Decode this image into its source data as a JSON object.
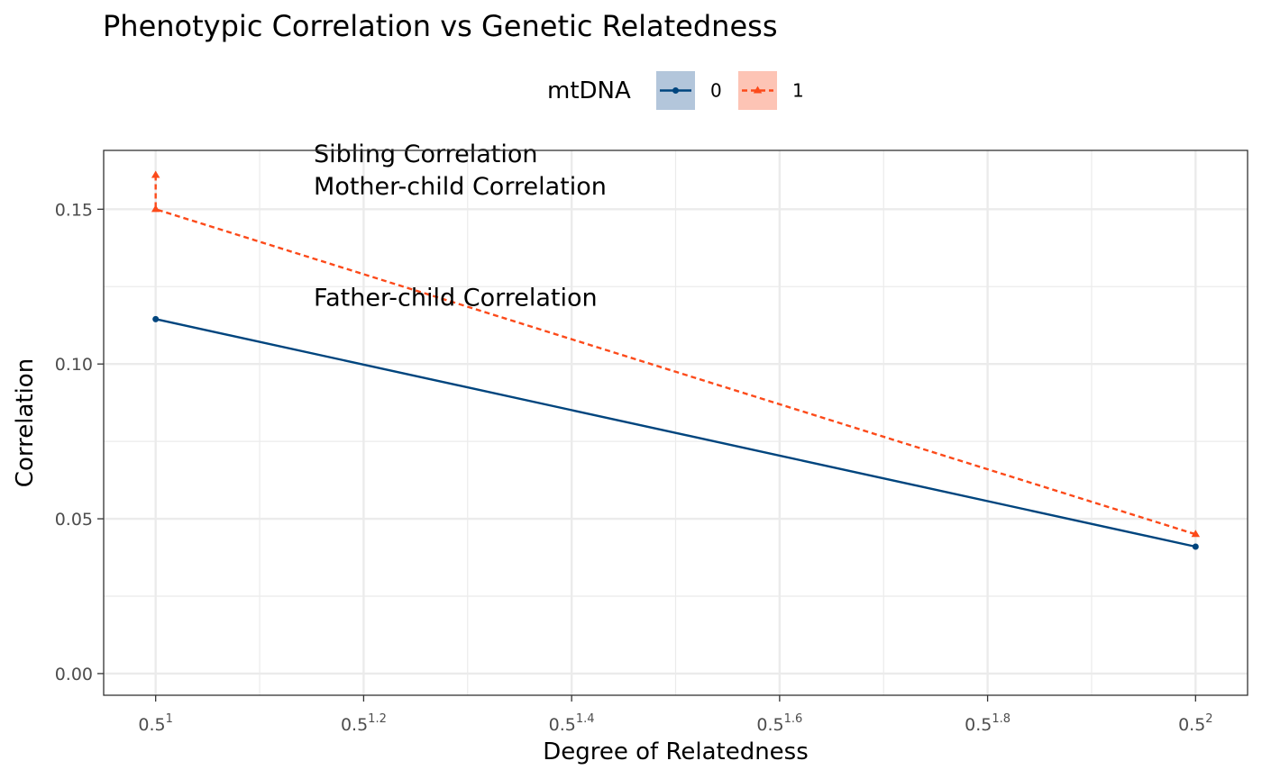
{
  "chart_data": {
    "type": "line",
    "title": "Phenotypic Correlation vs Genetic Relatedness",
    "xlabel": "Degree of Relatedness",
    "ylabel": "Correlation",
    "x_scale": "log",
    "x_tick_base": "0.5",
    "x_tick_exponents": [
      "1",
      "1.2",
      "1.4",
      "1.6",
      "1.8",
      "2"
    ],
    "x_exponent_range": [
      0.95,
      2.05
    ],
    "y_ticks": [
      "0.00",
      "0.05",
      "0.10",
      "0.15"
    ],
    "ylim": [
      -0.007,
      0.169
    ],
    "grid": true,
    "legend": {
      "title": "mtDNA",
      "position": "top",
      "entries": [
        {
          "label": "0",
          "color": "#00457e",
          "fill": "#b3c6db",
          "line": "solid",
          "marker": "circle"
        },
        {
          "label": "1",
          "color": "#fc4a1a",
          "fill": "#fdc4b5",
          "line": "dashed",
          "marker": "triangle"
        }
      ]
    },
    "series": [
      {
        "name": "0",
        "color": "#00457e",
        "line": "solid",
        "marker": "circle",
        "points": [
          {
            "x_exp": 1,
            "y": 0.1145
          },
          {
            "x_exp": 2,
            "y": 0.041
          }
        ]
      },
      {
        "name": "1",
        "color": "#fc4a1a",
        "line": "dashed",
        "marker": "triangle",
        "points": [
          {
            "x_exp": 1,
            "y": 0.161
          },
          {
            "x_exp": 1,
            "y": 0.15
          },
          {
            "x_exp": 2,
            "y": 0.045
          }
        ]
      }
    ],
    "annotations": [
      {
        "text": "Sibling Correlation",
        "x_exp": 1.152,
        "y": 0.1652
      },
      {
        "text": "Mother-child Correlation",
        "x_exp": 1.152,
        "y": 0.1547
      },
      {
        "text": "Father-child Correlation",
        "x_exp": 1.152,
        "y": 0.1188
      }
    ]
  }
}
